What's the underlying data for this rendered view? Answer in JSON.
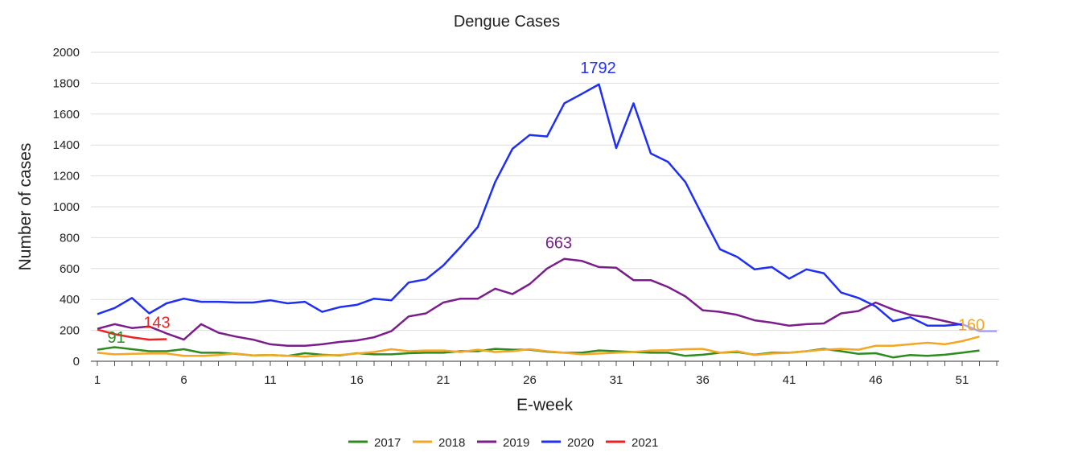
{
  "chart_data": {
    "type": "line",
    "title": "Dengue Cases",
    "xlabel": "E-week",
    "ylabel": "Number of cases",
    "xlim": [
      1,
      53
    ],
    "ylim": [
      0,
      2000
    ],
    "x_ticks": [
      1,
      6,
      11,
      16,
      21,
      26,
      31,
      36,
      41,
      46,
      51
    ],
    "y_ticks": [
      0,
      200,
      400,
      600,
      800,
      1000,
      1200,
      1400,
      1600,
      1800,
      2000
    ],
    "grid": "horizontal",
    "legend_position": "bottom",
    "series": [
      {
        "name": "2017",
        "color": "#2e8b1f",
        "x": [
          1,
          2,
          3,
          4,
          5,
          6,
          7,
          8,
          9,
          10,
          11,
          12,
          13,
          14,
          15,
          16,
          17,
          18,
          19,
          20,
          21,
          22,
          23,
          24,
          25,
          26,
          27,
          28,
          29,
          30,
          31,
          32,
          33,
          34,
          35,
          36,
          37,
          38,
          39,
          40,
          41,
          42,
          43,
          44,
          45,
          46,
          47,
          48,
          49,
          50,
          51,
          52
        ],
        "values": [
          75,
          91,
          78,
          65,
          65,
          78,
          55,
          55,
          48,
          38,
          40,
          35,
          52,
          42,
          38,
          52,
          45,
          45,
          52,
          55,
          55,
          65,
          65,
          80,
          75,
          75,
          62,
          55,
          55,
          70,
          65,
          60,
          55,
          55,
          35,
          42,
          55,
          60,
          42,
          55,
          55,
          65,
          80,
          65,
          48,
          52,
          25,
          40,
          35,
          42,
          55,
          70
        ],
        "annotation": {
          "x": 2,
          "value": 91,
          "label": "91"
        }
      },
      {
        "name": "2018",
        "color": "#f5a623",
        "x": [
          1,
          2,
          3,
          4,
          5,
          6,
          7,
          8,
          9,
          10,
          11,
          12,
          13,
          14,
          15,
          16,
          17,
          18,
          19,
          20,
          21,
          22,
          23,
          24,
          25,
          26,
          27,
          28,
          29,
          30,
          31,
          32,
          33,
          34,
          35,
          36,
          37,
          38,
          39,
          40,
          41,
          42,
          43,
          44,
          45,
          46,
          47,
          48,
          49,
          50,
          51,
          52
        ],
        "values": [
          55,
          45,
          48,
          50,
          50,
          35,
          35,
          40,
          50,
          38,
          40,
          35,
          30,
          38,
          40,
          50,
          60,
          78,
          65,
          70,
          70,
          60,
          75,
          60,
          65,
          78,
          65,
          55,
          45,
          50,
          55,
          60,
          70,
          72,
          78,
          80,
          55,
          65,
          40,
          50,
          55,
          65,
          75,
          80,
          75,
          100,
          100,
          110,
          120,
          110,
          130,
          160
        ],
        "annotation": {
          "x": 52,
          "value": 160,
          "label": "160"
        }
      },
      {
        "name": "2019",
        "color": "#7b1e8c",
        "x": [
          1,
          2,
          3,
          4,
          5,
          6,
          7,
          8,
          9,
          10,
          11,
          12,
          13,
          14,
          15,
          16,
          17,
          18,
          19,
          20,
          21,
          22,
          23,
          24,
          25,
          26,
          27,
          28,
          29,
          30,
          31,
          32,
          33,
          34,
          35,
          36,
          37,
          38,
          39,
          40,
          41,
          42,
          43,
          44,
          45,
          46,
          47,
          48,
          49,
          50,
          51
        ],
        "values": [
          210,
          240,
          215,
          225,
          180,
          140,
          240,
          185,
          160,
          140,
          110,
          100,
          100,
          110,
          125,
          135,
          155,
          195,
          290,
          310,
          380,
          405,
          405,
          470,
          435,
          500,
          600,
          663,
          650,
          610,
          605,
          525,
          525,
          480,
          420,
          330,
          320,
          300,
          265,
          250,
          230,
          240,
          245,
          310,
          325,
          380,
          335,
          300,
          285,
          260,
          235
        ],
        "annotation": {
          "x": 28,
          "value": 663,
          "label": "663"
        }
      },
      {
        "name": "2020",
        "color": "#1f2ff5",
        "x": [
          1,
          2,
          3,
          4,
          5,
          6,
          7,
          8,
          9,
          10,
          11,
          12,
          13,
          14,
          15,
          16,
          17,
          18,
          19,
          20,
          21,
          22,
          23,
          24,
          25,
          26,
          27,
          28,
          29,
          30,
          31,
          32,
          33,
          34,
          35,
          36,
          37,
          38,
          39,
          40,
          41,
          42,
          43,
          44,
          45,
          46,
          47,
          48,
          49,
          50,
          51
        ],
        "values": [
          305,
          345,
          410,
          310,
          375,
          405,
          385,
          385,
          380,
          380,
          395,
          375,
          385,
          320,
          350,
          365,
          405,
          395,
          510,
          530,
          620,
          740,
          870,
          1160,
          1375,
          1465,
          1455,
          1670,
          1730,
          1792,
          1380,
          1670,
          1345,
          1290,
          1160,
          940,
          725,
          675,
          595,
          610,
          535,
          595,
          570,
          445,
          410,
          355,
          260,
          285,
          230,
          230,
          240
        ],
        "annotation": {
          "x": 30,
          "value": 1792,
          "label": "1792"
        }
      },
      {
        "name": "2021",
        "color": "#ee2222",
        "x": [
          1,
          2,
          3,
          4,
          5
        ],
        "values": [
          205,
          175,
          155,
          140,
          143
        ],
        "annotation": {
          "x": 5,
          "value": 143,
          "label": "143"
        }
      }
    ],
    "extension_segment": {
      "color": "#a9a4f0",
      "x": [
        51,
        52,
        53
      ],
      "values": [
        240,
        195,
        195
      ]
    }
  }
}
